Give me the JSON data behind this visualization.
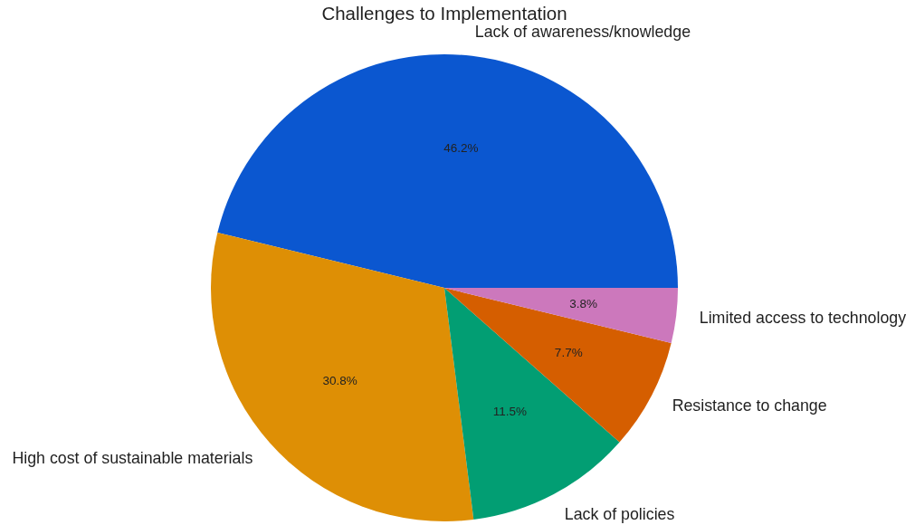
{
  "chart_data": {
    "type": "pie",
    "title": "Challenges to Implementation",
    "categories": [
      "Lack of awareness/knowledge",
      "High cost of sustainable materials",
      "Lack of policies",
      "Resistance to change",
      "Limited access to technology"
    ],
    "values": [
      46.2,
      30.8,
      11.5,
      7.7,
      3.8
    ],
    "colors": [
      "#0b57d0",
      "#de8f05",
      "#029e73",
      "#d55e00",
      "#cc78bc"
    ],
    "value_labels": [
      "46.2%",
      "30.8%",
      "11.5%",
      "7.7%",
      "3.8%"
    ]
  }
}
